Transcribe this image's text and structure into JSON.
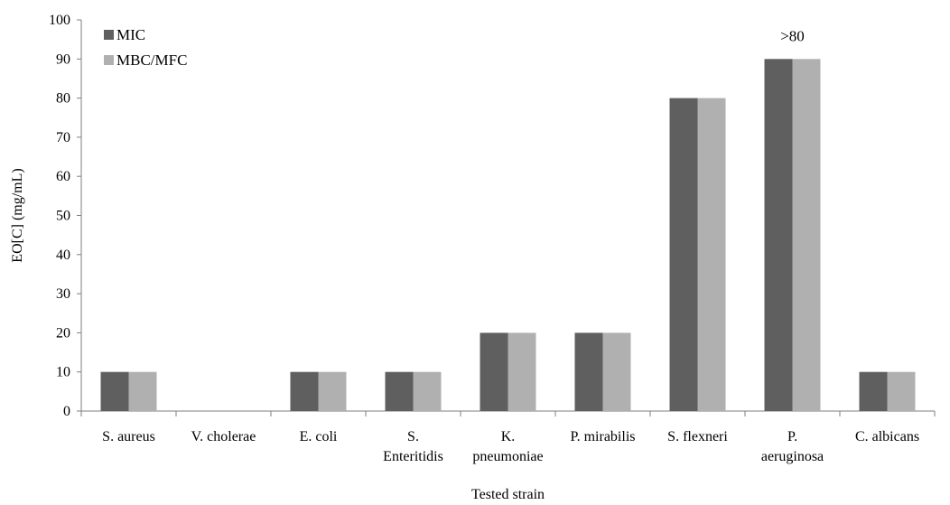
{
  "chart_data": {
    "type": "bar",
    "title": "",
    "xlabel": "Tested strain",
    "ylabel": "EO[C] (mg/mL)",
    "ylim": [
      0,
      100
    ],
    "yticks": [
      0,
      10,
      20,
      30,
      40,
      50,
      60,
      70,
      80,
      90,
      100
    ],
    "grid": false,
    "legend_position": "top-left",
    "categories": [
      [
        "S. aureus"
      ],
      [
        "V. cholerae"
      ],
      [
        "E. coli"
      ],
      [
        "S.",
        "Enteritidis"
      ],
      [
        "K.",
        "pneumoniae"
      ],
      [
        "P. mirabilis"
      ],
      [
        "S.  flexneri"
      ],
      [
        "P.",
        "aeruginosa"
      ],
      [
        "C. albicans"
      ]
    ],
    "series": [
      {
        "name": "MIC",
        "color": "#5f5f5f",
        "values": [
          10,
          0,
          10,
          10,
          20,
          20,
          80,
          90,
          10
        ]
      },
      {
        "name": "MBC/MFC",
        "color": "#b0b0b0",
        "values": [
          10,
          0,
          10,
          10,
          20,
          20,
          80,
          90,
          10
        ]
      }
    ],
    "annotations": [
      {
        "text": ">80",
        "category_index": 7,
        "value": 96
      }
    ]
  }
}
